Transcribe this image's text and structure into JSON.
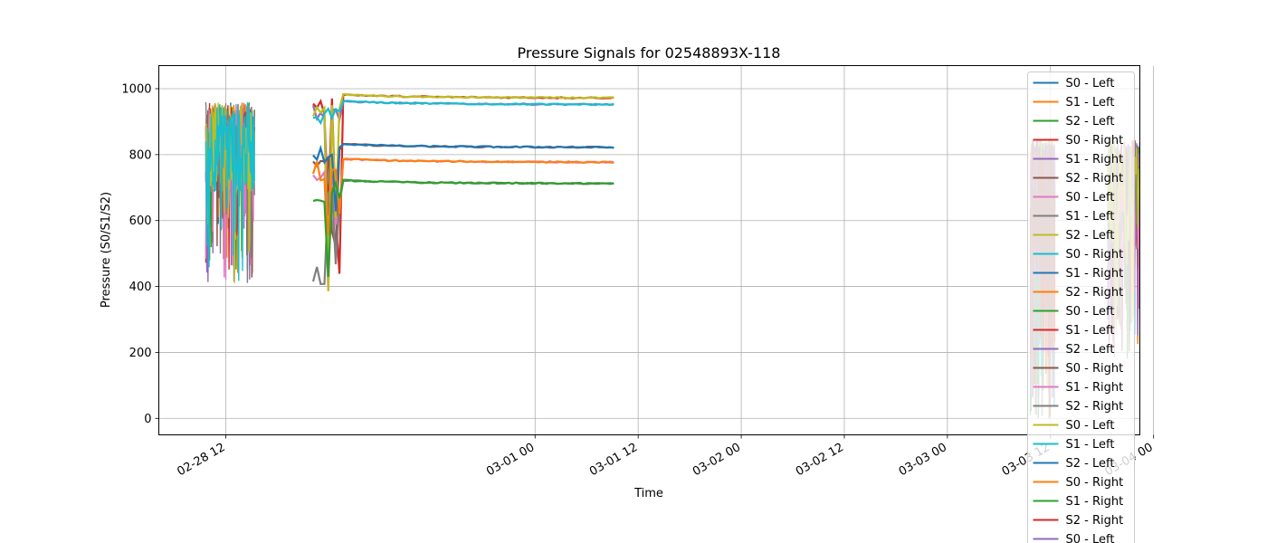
{
  "chart_data": {
    "type": "line",
    "title": "Pressure Signals for 02548893X-118",
    "xlabel": "Time",
    "ylabel": "Pressure (S0/S1/S2)",
    "xlim": [
      "2028-02-28T04:12",
      "2028-03-03T22:24"
    ],
    "ylim": [
      -50,
      1070
    ],
    "grid": true,
    "legend_position": "upper right",
    "x_ticks": [
      "02-28 12",
      "03-01 00",
      "03-01 12",
      "03-02 00",
      "03-02 12",
      "03-03 00",
      "03-03 12",
      "03-04 00"
    ],
    "y_ticks": [
      0,
      200,
      400,
      600,
      800,
      1000
    ],
    "palette": [
      "#1f77b4",
      "#ff7f0e",
      "#2ca02c",
      "#d62728",
      "#9467bd",
      "#8c564b",
      "#e377c2",
      "#7f7f7f",
      "#bcbd22",
      "#17becf"
    ],
    "series_names": [
      "S0 - Left",
      "S1 - Left",
      "S2 - Left",
      "S0 - Right",
      "S1 - Right",
      "S2 - Right",
      "S0 - Left",
      "S1 - Left",
      "S2 - Left",
      "S0 - Right",
      "S1 - Right",
      "S2 - Right",
      "S0 - Left",
      "S1 - Left",
      "S2 - Left",
      "S0 - Right",
      "S1 - Right",
      "S2 - Right",
      "S0 - Left",
      "S1 - Left",
      "S2 - Left",
      "S0 - Right",
      "S1 - Right",
      "S2 - Right",
      "S0 - Left"
    ],
    "segments": [
      {
        "start": "2028-02-28T09:40",
        "end": "2028-02-28T15:20",
        "pattern": "noisy",
        "low": 410,
        "high": 1020
      },
      {
        "start": "2028-02-28T22:10",
        "end": "2028-03-01T09:10",
        "pattern": "settling",
        "levels": [
          975,
          955,
          825,
          780,
          715
        ],
        "dip_to": 360
      },
      {
        "start": "2028-03-03T09:40",
        "end": "2028-03-03T12:30",
        "pattern": "noisy",
        "low": 0,
        "high": 940
      },
      {
        "start": "2028-03-03T18:40",
        "end": "2028-03-04T01:30",
        "pattern": "noisy",
        "low": 180,
        "high": 920
      }
    ]
  }
}
